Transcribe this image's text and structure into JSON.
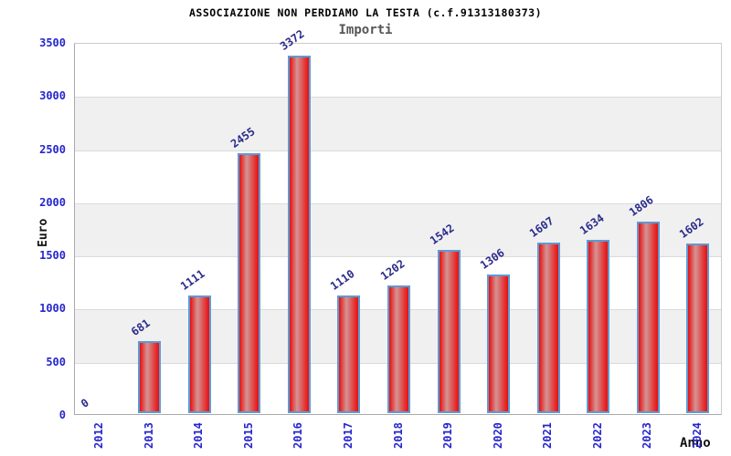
{
  "chart_data": {
    "type": "bar",
    "title": "ASSOCIAZIONE NON PERDIAMO LA TESTA (c.f.91313180373)",
    "subtitle": "Importi",
    "categories": [
      "2012",
      "2013",
      "2014",
      "2015",
      "2016",
      "2017",
      "2018",
      "2019",
      "2020",
      "2021",
      "2022",
      "2023",
      "2024"
    ],
    "values": [
      0,
      681,
      1111,
      2455,
      3372,
      1110,
      1202,
      1542,
      1306,
      1607,
      1634,
      1806,
      1602
    ],
    "xlabel": "Anno",
    "ylabel": "Euro",
    "ylim": [
      0,
      3500
    ],
    "ytick_step": 500,
    "yticks": [
      0,
      500,
      1000,
      1500,
      2000,
      2500,
      3000,
      3500
    ],
    "grid": true,
    "legend_position": "none",
    "colors": {
      "bar_fill": "#e81414",
      "bar_highlight": "#d49494",
      "bar_border": "#5b9bd5",
      "axis_label": "#2626cd",
      "value_label": "#2b2b8c",
      "band_gray": "#f0f0f0",
      "gridline": "#dadada",
      "title": "#000000",
      "subtitle": "#555555"
    }
  }
}
